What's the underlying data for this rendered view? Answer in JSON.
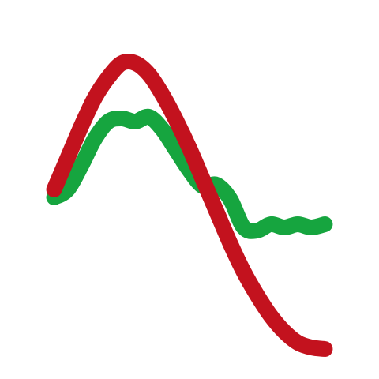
{
  "chart_data": {
    "type": "line",
    "x": [
      0,
      0.05,
      0.1,
      0.15,
      0.2,
      0.25,
      0.3,
      0.35,
      0.4,
      0.45,
      0.5,
      0.55,
      0.6,
      0.65,
      0.7,
      0.75,
      0.8,
      0.85,
      0.9,
      0.95,
      1.0
    ],
    "xlim": [
      -0.2,
      1.2
    ],
    "ylim": [
      -1.2,
      1.2
    ],
    "grid": false,
    "legend": "none",
    "series": [
      {
        "color": "#16a53f",
        "values": [
          -0.05,
          0.0,
          0.15,
          0.32,
          0.43,
          0.45,
          0.43,
          0.46,
          0.38,
          0.25,
          0.12,
          0.02,
          0.03,
          -0.06,
          -0.24,
          -0.26,
          -0.22,
          -0.24,
          -0.22,
          -0.24,
          -0.22
        ]
      },
      {
        "color": "#c3121e",
        "values": [
          0.0,
          0.2,
          0.4,
          0.58,
          0.71,
          0.8,
          0.8,
          0.73,
          0.6,
          0.44,
          0.26,
          0.06,
          -0.14,
          -0.34,
          -0.52,
          -0.67,
          -0.8,
          -0.9,
          -0.97,
          -1.0,
          -1.01
        ]
      }
    ]
  }
}
